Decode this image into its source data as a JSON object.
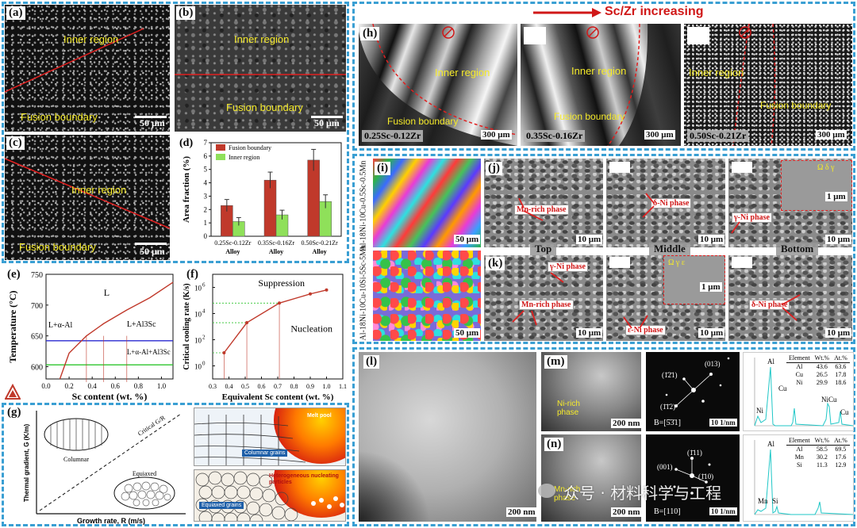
{
  "panels": {
    "a": {
      "label": "(a)",
      "inner": "Inner region",
      "fusion": "Fusion boundary",
      "scale": "50 μm"
    },
    "b": {
      "label": "(b)",
      "inner": "Inner region",
      "fusion": "Fusion boundary",
      "scale": "50 μm"
    },
    "c": {
      "label": "(c)",
      "inner": "Inner region",
      "fusion": "Fusion boundary",
      "scale": "50 μm"
    },
    "e": {
      "label": "(e)"
    },
    "f": {
      "label": "(f)"
    },
    "g": {
      "label": "(g)",
      "columnar": "Columnar",
      "equiaxed": "Equiaxed",
      "critical": "Critical G/R",
      "ylabel": "Thermal gradient, G (K/m)",
      "xlabel": "Growth rate, R (m/s)",
      "melt_pool": "Melt pool",
      "columnar_grains": "Columnar grains",
      "hetero": "Heterogeneous nucleating particles",
      "equiaxed_grains": "Equiaxed grains"
    },
    "h": {
      "label": "(h)",
      "title": "Sc/Zr increasing",
      "inner": "Inner region",
      "fusion": "Fusion boundary",
      "alloys": [
        "0.25Sc-0.12Zr",
        "0.35Sc-0.16Zr",
        "0.50Sc-0.21Zr"
      ],
      "scale": "300 μm"
    },
    "i": {
      "label": "(i)",
      "row1": "Al-18Ni-10Cu-0.5Sc-0.5Mn",
      "row2": "Al-18Ni-10Cu-10Si-5Sc-5Mn",
      "scale": "50 μm"
    },
    "j": {
      "label": "(j)",
      "mn_rich": "Mn-rich phase",
      "delta_ni": "δ-Ni phase",
      "gamma_ni": "γ-Ni phase",
      "scale10": "10 μm",
      "scale1": "1 μm",
      "inset_letters": "Ω  δ  γ"
    },
    "k": {
      "label": "(k)",
      "gamma_ni": "γ-Ni phase",
      "mn_rich": "Mn-rich phase",
      "eps_ni": "ε-Ni phase",
      "delta_ni": "δ-Ni phase",
      "scale10": "10 μm",
      "scale1": "1 μm",
      "top": "Top",
      "middle": "Middle",
      "bottom": "Bottom",
      "inset_letters": "Ω  γ  ε"
    },
    "l": {
      "label": "(l)",
      "scale": "200 nm"
    },
    "m": {
      "label": "(m)",
      "ni_rich": "Ni-rich phase",
      "scale": "200 nm",
      "zone": "B=[5̄3̄1]",
      "spots": [
        "(1̄2̄1)",
        "(013)",
        "(1̄1̄2)"
      ],
      "saed_scale": "10 1/nm"
    },
    "n": {
      "label": "(n)",
      "mn_rich": "Mn-rich phase",
      "scale": "200 nm",
      "zone": "B=[110]",
      "spots": [
        "(001)",
        "(1̄11)",
        "(1̄10)"
      ],
      "saed_scale": "10 1/nm"
    },
    "watermark": "众号 · 材料科学与工程"
  },
  "eds_tables": [
    {
      "header": [
        "Element",
        "Wt.%",
        "At.%"
      ],
      "rows": [
        [
          "Al",
          "43.6",
          "63.6"
        ],
        [
          "Cu",
          "26.5",
          "17.8"
        ],
        [
          "Ni",
          "29.9",
          "18.6"
        ]
      ],
      "peaks": [
        "Al",
        "Cu",
        "Ni",
        "NiCu",
        "Cu"
      ]
    },
    {
      "header": [
        "Element",
        "Wt.%",
        "At.%"
      ],
      "rows": [
        [
          "Al",
          "58.5",
          "69.5"
        ],
        [
          "Mn",
          "30.2",
          "17.6"
        ],
        [
          "Si",
          "11.3",
          "12.9"
        ]
      ],
      "peaks": [
        "Al",
        "Mn",
        "Si"
      ]
    }
  ],
  "chart_data": [
    {
      "type": "bar",
      "panel": "(d)",
      "categories": [
        "0.25Sc-0.12Zr",
        "0.35Sc-0.16Zr",
        "0.50Sc-0.21Zr"
      ],
      "series": [
        {
          "name": "Fusion boundary",
          "values": [
            2.3,
            4.2,
            5.7
          ],
          "errors": [
            0.45,
            0.6,
            0.8
          ],
          "color": "#c0392b"
        },
        {
          "name": "Inner region",
          "values": [
            1.1,
            1.6,
            2.6
          ],
          "errors": [
            0.3,
            0.35,
            0.5
          ],
          "color": "#8fe05a"
        }
      ],
      "xlabel": "Alloy",
      "ylabel": "Area fraction (%)",
      "ylim": [
        0,
        7
      ],
      "yticks": [
        0,
        1,
        2,
        3,
        4,
        5,
        6,
        7
      ],
      "legend": "top-left"
    },
    {
      "type": "line",
      "panel": "(e)",
      "xlabel": "Sc content (wt. %)",
      "ylabel": "Temperature (°C)",
      "xlim": [
        0,
        1.1
      ],
      "ylim": [
        580,
        750
      ],
      "xticks": [
        0.0,
        0.2,
        0.4,
        0.6,
        0.8,
        1.0
      ],
      "yticks": [
        600,
        650,
        700,
        750
      ],
      "liquidus": [
        [
          0.12,
          580
        ],
        [
          0.2,
          622
        ],
        [
          0.35,
          650
        ],
        [
          0.5,
          670
        ],
        [
          0.7,
          692
        ],
        [
          0.9,
          712
        ],
        [
          1.1,
          737
        ]
      ],
      "horizontal_lines": [
        {
          "y": 642,
          "color": "#2a2ad0"
        },
        {
          "y": 603,
          "color": "#2ec42e"
        }
      ],
      "region_labels": [
        "L",
        "L+α-Al",
        "L+Al3Sc",
        "L+α-Al+Al3Sc"
      ],
      "vertical_markers_x": [
        0.35,
        0.5,
        0.7
      ]
    },
    {
      "type": "line",
      "panel": "(f)",
      "xlabel": "Equivalent Sc content (wt. %)",
      "ylabel": "Critical cooling rate (K/s)",
      "xlim": [
        0.3,
        1.1
      ],
      "ylim_log10": [
        -1,
        7
      ],
      "xticks": [
        0.3,
        0.4,
        0.5,
        0.6,
        0.7,
        0.8,
        0.9,
        1.0,
        1.1
      ],
      "ytick_exponents": [
        0,
        2,
        4,
        6
      ],
      "x": [
        0.37,
        0.51,
        0.71,
        0.9,
        1.0
      ],
      "log10_y": [
        1.0,
        3.3,
        4.8,
        5.5,
        5.8
      ],
      "region_labels": [
        "Suppression",
        "Nucleation"
      ]
    }
  ]
}
